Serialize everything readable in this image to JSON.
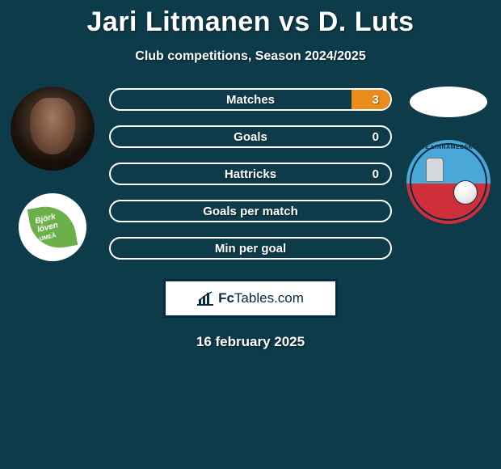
{
  "title": "Jari Litmanen vs D. Luts",
  "subtitle": "Club competitions, Season 2024/2025",
  "colors": {
    "background": "#0d3b4a",
    "accent": "#e98c1a",
    "text": "#ffffff",
    "box_border": "#062c42"
  },
  "stats": [
    {
      "label": "Matches",
      "right_value": "3",
      "right_fill_pct": 14
    },
    {
      "label": "Goals",
      "right_value": "0",
      "right_fill_pct": 0
    },
    {
      "label": "Hattricks",
      "right_value": "0",
      "right_fill_pct": 0
    },
    {
      "label": "Goals per match",
      "right_value": "",
      "right_fill_pct": 0
    },
    {
      "label": "Min per goal",
      "right_value": "",
      "right_fill_pct": 0
    }
  ],
  "left_club": {
    "name": "Björklöven Umeå",
    "badge_text_line1": "Björk",
    "badge_text_line2": "löven",
    "badge_text_line3": "UMEÅ"
  },
  "right_club": {
    "name": "Paide Linnameeskond",
    "arc_text": "PAIDE LINNAMEESKOND"
  },
  "brand": {
    "prefix": "Fc",
    "suffix": "Tables.com"
  },
  "date": "16 february 2025"
}
